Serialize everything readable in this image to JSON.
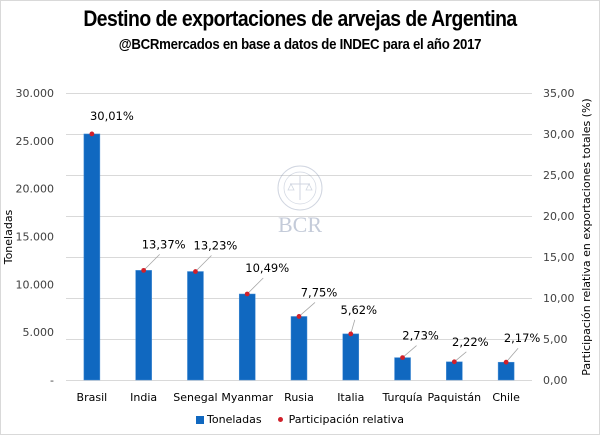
{
  "chart_data": {
    "type": "bar",
    "title": "Destino de exportaciones de arvejas de Argentina",
    "subtitle": "@BCRmercados en base a datos de INDEC para el año 2017",
    "categories": [
      "Brasil",
      "India",
      "Senegal",
      "Myanmar",
      "Rusia",
      "Italia",
      "Turquía",
      "Paquistán",
      "Chile"
    ],
    "series": [
      {
        "name": "Toneladas",
        "type": "bar",
        "axis": "left",
        "color": "#1068c0",
        "values": [
          25720,
          11460,
          11340,
          8990,
          6640,
          4820,
          2340,
          1900,
          1860
        ]
      },
      {
        "name": "Participación relativa",
        "type": "scatter",
        "axis": "right",
        "color": "#d0202a",
        "values": [
          30.01,
          13.37,
          13.23,
          10.49,
          7.75,
          5.62,
          2.73,
          2.22,
          2.17
        ],
        "labels": [
          "30,01%",
          "13,37%",
          "13,23%",
          "10,49%",
          "7,75%",
          "5,62%",
          "2,73%",
          "2,22%",
          "2,17%"
        ]
      }
    ],
    "ylabel": "Toneladas",
    "ylim": [
      0,
      30000
    ],
    "yticks": [
      0,
      5000,
      10000,
      15000,
      20000,
      25000,
      30000
    ],
    "ytick_labels": [
      "-",
      "5.000",
      "10.000",
      "15.000",
      "20.000",
      "25.000",
      "30.000"
    ],
    "y2label": "Participación relativa en exportaciones totales (%)",
    "y2lim": [
      0,
      35
    ],
    "y2ticks": [
      0,
      5,
      10,
      15,
      20,
      25,
      30,
      35
    ],
    "y2tick_labels": [
      "0,00",
      "5,00",
      "10,00",
      "15,00",
      "20,00",
      "25,00",
      "30,00",
      "35,00"
    ],
    "grid": true,
    "legend": "bottom",
    "watermark": "BCR"
  },
  "legend": {
    "items": [
      "Toneladas",
      "Participación relativa"
    ]
  }
}
